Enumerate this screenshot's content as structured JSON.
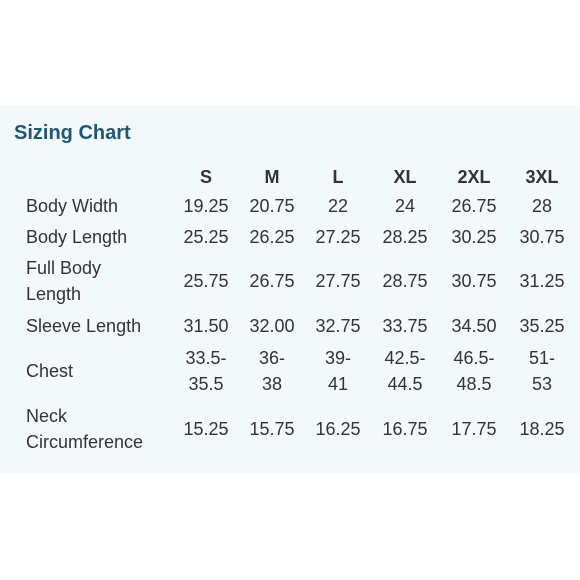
{
  "title": "Sizing Chart",
  "sizes": [
    "S",
    "M",
    "L",
    "XL",
    "2XL",
    "3XL"
  ],
  "rows": [
    {
      "label": "Body Width",
      "values": [
        "19.25",
        "20.75",
        "22",
        "24",
        "26.75",
        "28"
      ]
    },
    {
      "label": "Body Length",
      "values": [
        "25.25",
        "26.25",
        "27.25",
        "28.25",
        "30.25",
        "30.75"
      ]
    },
    {
      "label": "Full Body\nLength",
      "values": [
        "25.75",
        "26.75",
        "27.75",
        "28.75",
        "30.75",
        "31.25"
      ]
    },
    {
      "label": "Sleeve Length",
      "values": [
        "31.50",
        "32.00",
        "32.75",
        "33.75",
        "34.50",
        "35.25"
      ]
    },
    {
      "label": "Chest",
      "values": [
        "33.5-\n35.5",
        "36-\n38",
        "39-\n41",
        "42.5-\n44.5",
        "46.5-\n48.5",
        "51-\n53"
      ]
    },
    {
      "label": "Neck\nCircumference",
      "values": [
        "15.25",
        "15.75",
        "16.25",
        "16.75",
        "17.75",
        "18.25"
      ]
    }
  ],
  "colors": {
    "title": "#1f5776",
    "text": "#333333",
    "panel_background": "#f3f8fb",
    "page_background": "#ffffff"
  }
}
